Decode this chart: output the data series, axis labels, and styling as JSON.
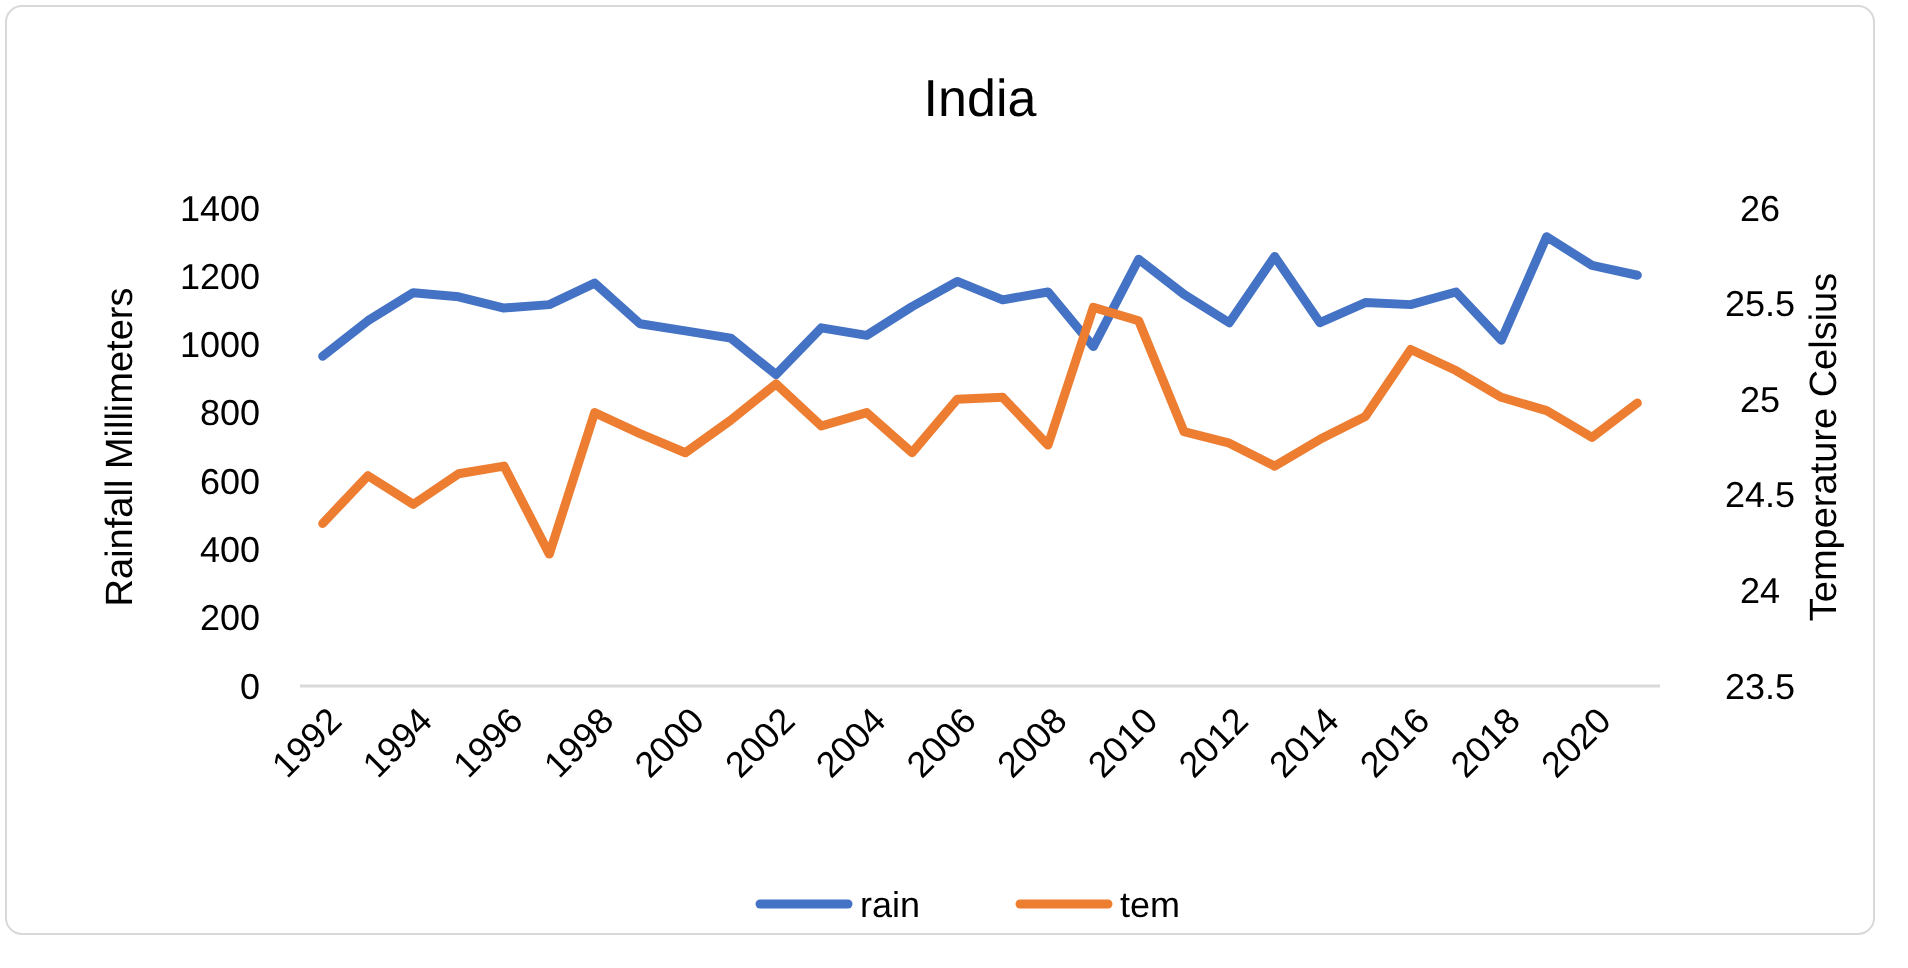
{
  "chart_data": {
    "type": "line",
    "title": "India",
    "ylabel": "Rainfall Millimeters",
    "y2label": "Temperature Celsius",
    "x": [
      1992,
      1993,
      1994,
      1995,
      1996,
      1997,
      1998,
      1999,
      2000,
      2001,
      2002,
      2003,
      2004,
      2005,
      2006,
      2007,
      2008,
      2009,
      2010,
      2011,
      2012,
      2013,
      2014,
      2015,
      2016,
      2017,
      2018,
      2019,
      2020,
      2021
    ],
    "xlim": [
      1991.5,
      2021.5
    ],
    "xticks": [
      1992,
      1994,
      1996,
      1998,
      2000,
      2002,
      2004,
      2006,
      2008,
      2010,
      2012,
      2014,
      2016,
      2018,
      2020
    ],
    "ylim": [
      0,
      1400
    ],
    "yticks": [
      0,
      200,
      400,
      600,
      800,
      1000,
      1200,
      1400
    ],
    "y2lim": [
      23.5,
      26
    ],
    "y2ticks": [
      23.5,
      24,
      24.5,
      25,
      25.5,
      26
    ],
    "legend": "bottom",
    "grid": false,
    "series": [
      {
        "name": "rain",
        "color": "#4472c4",
        "values": [
          966,
          1070,
          1152,
          1140,
          1107,
          1117,
          1180,
          1061,
          1040,
          1019,
          912,
          1049,
          1027,
          1111,
          1185,
          1131,
          1154,
          994,
          1250,
          1147,
          1064,
          1258,
          1064,
          1123,
          1117,
          1154,
          1013,
          1316,
          1232,
          1203
        ]
      },
      {
        "name": "tem",
        "color": "#ed7d31",
        "axis": "y2",
        "values": [
          24.35,
          24.6,
          24.45,
          24.61,
          24.65,
          24.19,
          24.93,
          24.82,
          24.72,
          24.89,
          25.08,
          24.86,
          24.93,
          24.72,
          25.0,
          25.01,
          24.76,
          25.48,
          25.41,
          24.83,
          24.77,
          24.65,
          24.79,
          24.91,
          25.26,
          25.15,
          25.01,
          24.94,
          24.8,
          24.98
        ]
      }
    ]
  }
}
